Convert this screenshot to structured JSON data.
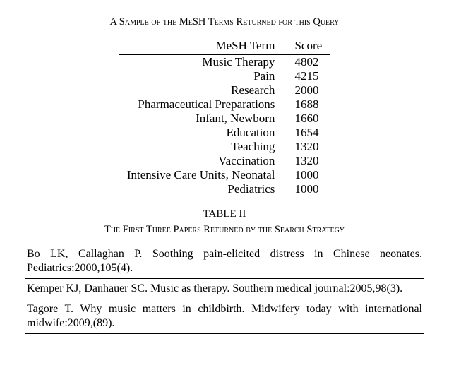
{
  "caption_top": "A Sample of the MeSH Terms Returned for this Query",
  "mesh_table": {
    "headers": {
      "term": "MeSH Term",
      "score": "Score"
    },
    "rows": [
      {
        "term": "Music Therapy",
        "score": "4802"
      },
      {
        "term": "Pain",
        "score": "4215"
      },
      {
        "term": "Research",
        "score": "2000"
      },
      {
        "term": "Pharmaceutical Preparations",
        "score": "1688"
      },
      {
        "term": "Infant, Newborn",
        "score": "1660"
      },
      {
        "term": "Education",
        "score": "1654"
      },
      {
        "term": "Teaching",
        "score": "1320"
      },
      {
        "term": "Vaccination",
        "score": "1320"
      },
      {
        "term": "Intensive Care Units, Neonatal",
        "score": "1000"
      },
      {
        "term": "Pediatrics",
        "score": "1000"
      }
    ]
  },
  "table2_label": "TABLE II",
  "table2_caption": "The First Three Papers Returned by the Search Strategy",
  "papers": [
    "Bo LK, Callaghan P. Soothing pain-elicited distress in Chinese neonates. Pediatrics:2000,105(4).",
    "Kemper KJ, Danhauer SC. Music as therapy. Southern medical journal:2005,98(3).",
    "Tagore T. Why music matters in childbirth. Midwifery today with international midwife:2009,(89)."
  ]
}
